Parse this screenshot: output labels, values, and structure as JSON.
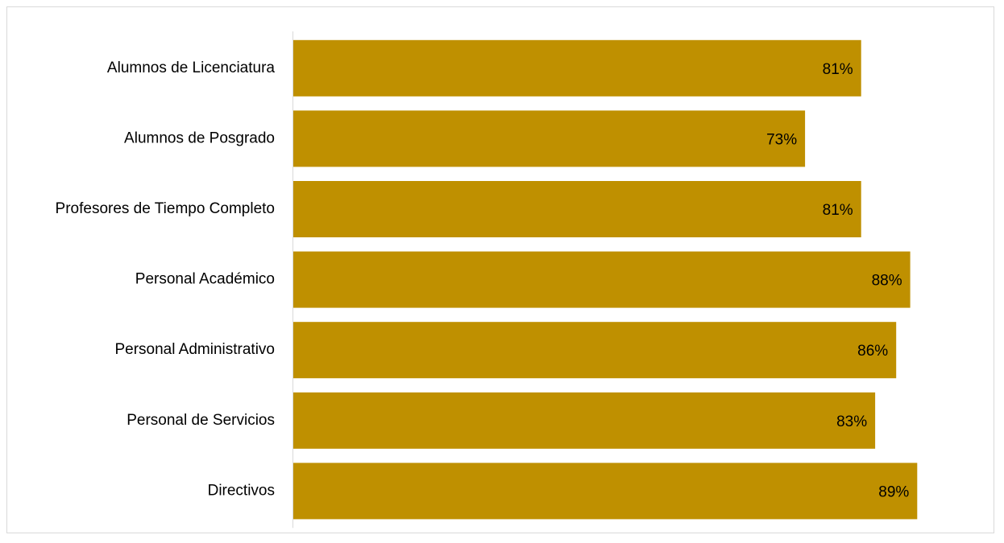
{
  "chart_data": {
    "type": "bar",
    "orientation": "horizontal",
    "categories": [
      "Alumnos de Licenciatura",
      "Alumnos de Posgrado",
      "Profesores de Tiempo Completo",
      "Personal Académico",
      "Personal Administrativo",
      "Personal de Servicios",
      "Directivos"
    ],
    "values": [
      81,
      73,
      81,
      88,
      86,
      83,
      89
    ],
    "value_labels": [
      "81%",
      "73%",
      "81%",
      "88%",
      "86%",
      "83%",
      "89%"
    ],
    "xlim": [
      0,
      100
    ],
    "grid": false,
    "legend": "none",
    "bar_color": "#bf9000",
    "axis_color": "#d9d9d9"
  }
}
